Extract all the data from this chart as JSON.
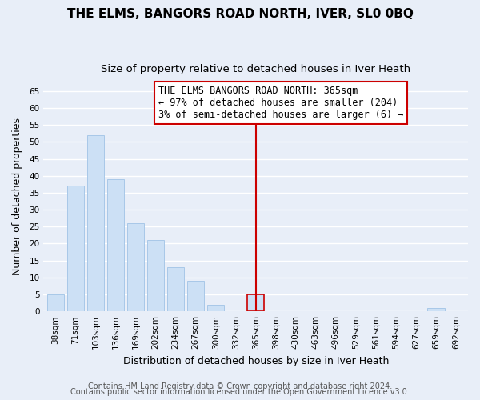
{
  "title": "THE ELMS, BANGORS ROAD NORTH, IVER, SL0 0BQ",
  "subtitle": "Size of property relative to detached houses in Iver Heath",
  "xlabel": "Distribution of detached houses by size in Iver Heath",
  "ylabel": "Number of detached properties",
  "bar_labels": [
    "38sqm",
    "71sqm",
    "103sqm",
    "136sqm",
    "169sqm",
    "202sqm",
    "234sqm",
    "267sqm",
    "300sqm",
    "332sqm",
    "365sqm",
    "398sqm",
    "430sqm",
    "463sqm",
    "496sqm",
    "529sqm",
    "561sqm",
    "594sqm",
    "627sqm",
    "659sqm",
    "692sqm"
  ],
  "bar_heights": [
    5,
    37,
    52,
    39,
    26,
    21,
    13,
    9,
    2,
    0,
    5,
    0,
    0,
    0,
    0,
    0,
    0,
    0,
    0,
    1,
    0
  ],
  "bar_color": "#cce0f5",
  "bar_edge_color": "#a8c8e8",
  "highlight_bar_index": 10,
  "highlight_bar_edge_color": "#cc0000",
  "vline_color": "#cc0000",
  "ylim": [
    0,
    68
  ],
  "yticks": [
    0,
    5,
    10,
    15,
    20,
    25,
    30,
    35,
    40,
    45,
    50,
    55,
    60,
    65
  ],
  "annotation_title": "THE ELMS BANGORS ROAD NORTH: 365sqm",
  "annotation_line1": "← 97% of detached houses are smaller (204)",
  "annotation_line2": "3% of semi-detached houses are larger (6) →",
  "footer_line1": "Contains HM Land Registry data © Crown copyright and database right 2024.",
  "footer_line2": "Contains public sector information licensed under the Open Government Licence v3.0.",
  "background_color": "#e8eef8",
  "plot_bg_color": "#e8eef8",
  "grid_color": "#ffffff",
  "title_fontsize": 11,
  "subtitle_fontsize": 9.5,
  "xlabel_fontsize": 9,
  "ylabel_fontsize": 9,
  "tick_fontsize": 7.5,
  "annotation_fontsize": 8.5,
  "footer_fontsize": 7
}
